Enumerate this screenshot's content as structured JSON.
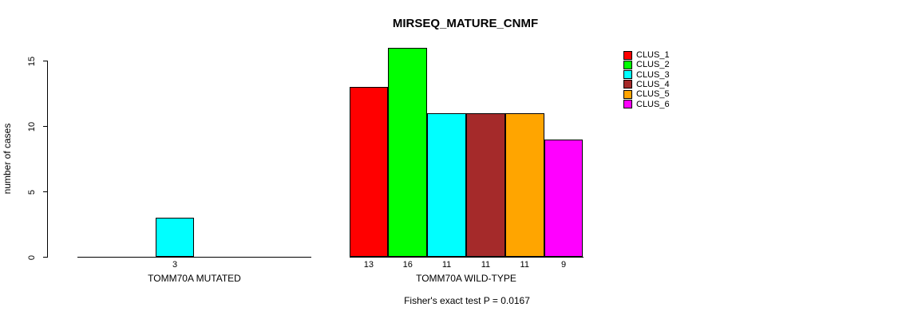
{
  "chart_data": {
    "type": "bar",
    "title": "MIRSEQ_MATURE_CNMF",
    "ylabel": "number of cases",
    "xlabel": "",
    "ylim": [
      0,
      16.5
    ],
    "yticks": [
      0,
      5,
      10,
      15
    ],
    "grid": false,
    "legend": {
      "position": "top-right",
      "entries": [
        {
          "label": "CLUS_1",
          "color": "#FF0000"
        },
        {
          "label": "CLUS_2",
          "color": "#00FF00"
        },
        {
          "label": "CLUS_3",
          "color": "#00FFFF"
        },
        {
          "label": "CLUS_4",
          "color": "#A52A2A"
        },
        {
          "label": "CLUS_5",
          "color": "#FFA500"
        },
        {
          "label": "CLUS_6",
          "color": "#FF00FF"
        }
      ]
    },
    "groups": [
      {
        "label": "TOMM70A MUTATED",
        "values": [
          0,
          0,
          3,
          0,
          0,
          0
        ],
        "bar_labels": [
          "",
          "",
          "3",
          "",
          "",
          ""
        ]
      },
      {
        "label": "TOMM70A WILD-TYPE",
        "values": [
          13,
          16,
          11,
          11,
          11,
          9
        ],
        "bar_labels": [
          "13",
          "16",
          "11",
          "11",
          "11",
          "9"
        ]
      }
    ],
    "footnote": "Fisher's exact test P = 0.0167"
  }
}
